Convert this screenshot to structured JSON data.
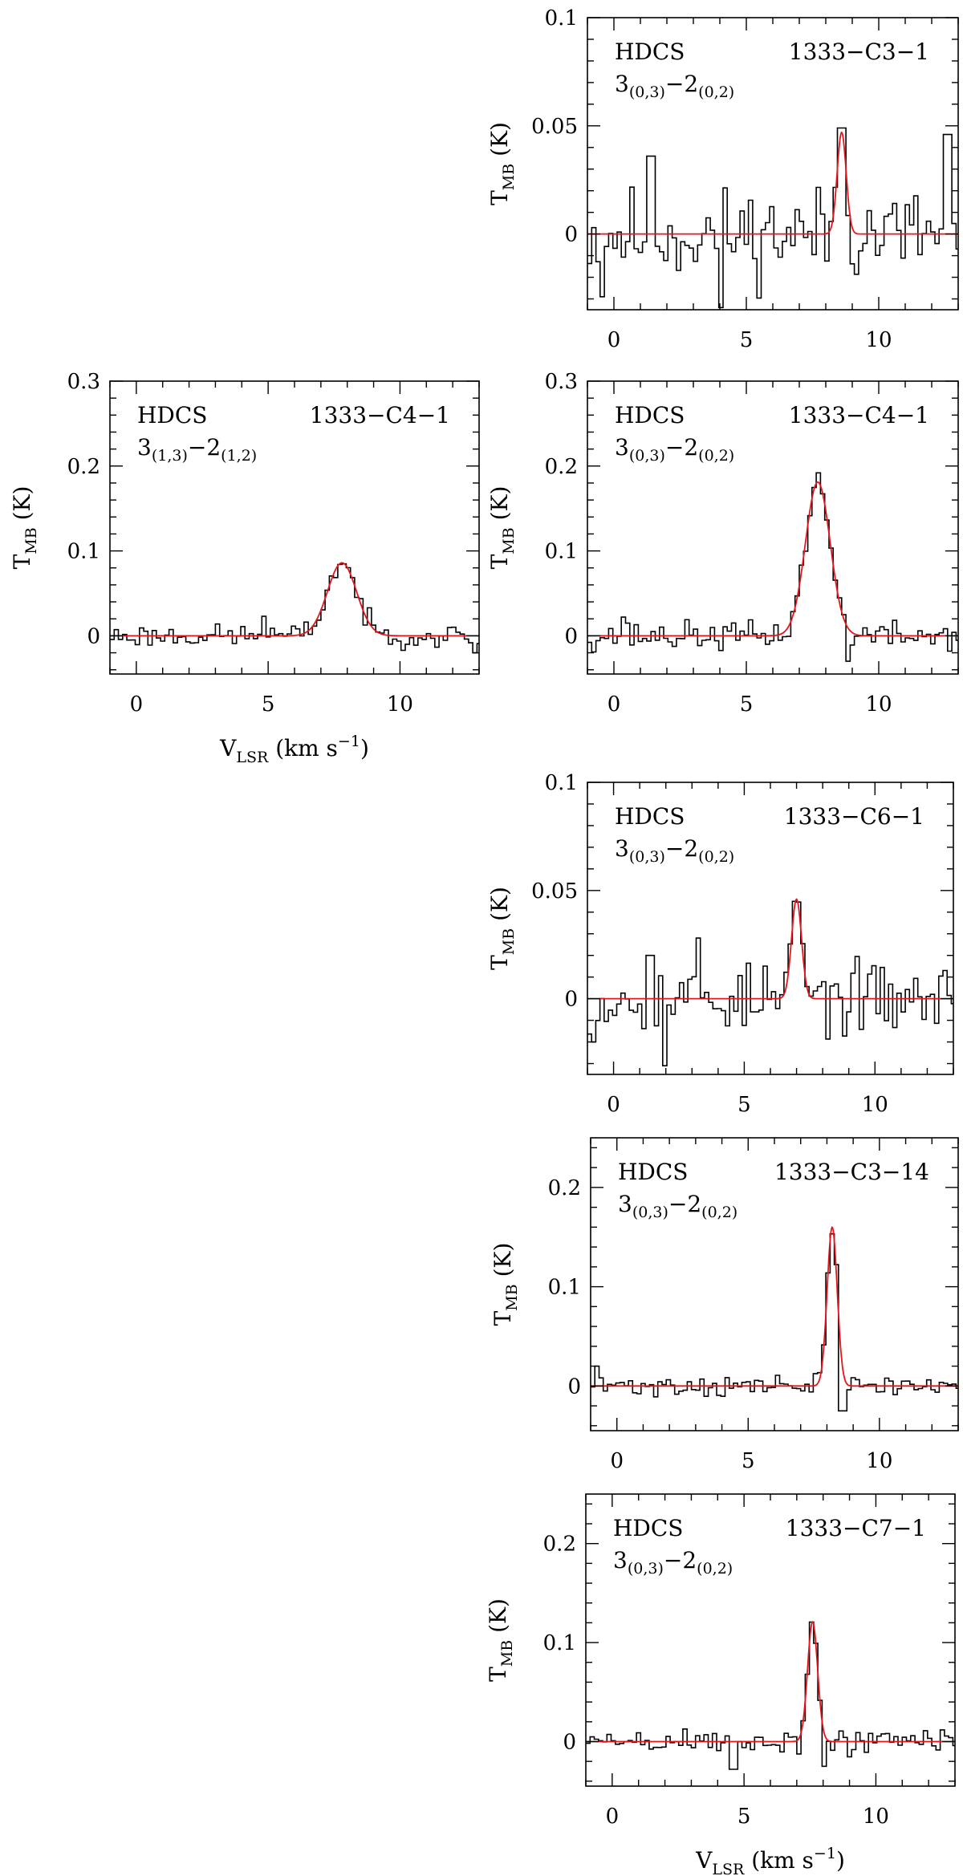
{
  "figure": {
    "x_axis_title": "V",
    "x_axis_title_sub": "LSR",
    "x_axis_title_unit": "(km s",
    "x_axis_title_exp": "−1",
    "x_axis_title_close": ")",
    "y_axis_title": "T",
    "y_axis_title_sub": "MB",
    "y_axis_title_unit": "(K)"
  },
  "colors": {
    "observed": "#000000",
    "fit": "#e8141b"
  },
  "chart_data": [
    {
      "type": "line",
      "id": "p1",
      "molecule": "HDCS",
      "source": "1333−C3−1",
      "transition": {
        "upper": "3",
        "upper_q": "(0,3)",
        "dash": "−",
        "lower": "2",
        "lower_q": "(0,2)"
      },
      "xlim": [
        -1,
        13
      ],
      "ylim": [
        -0.035,
        0.1
      ],
      "xticks": [
        0,
        5,
        10
      ],
      "xtick_labels": [
        "0",
        "5",
        "10"
      ],
      "yticks": [
        0,
        0.05,
        0.1
      ],
      "ytick_labels": [
        "0",
        "0.05",
        "0.1"
      ],
      "fit": {
        "amplitude": 0.047,
        "center": 8.6,
        "fwhm": 0.4
      },
      "noise": 0.018,
      "seed": 11,
      "spikes": [
        [
          8.6,
          0.049
        ],
        [
          12.6,
          0.046
        ],
        [
          1.4,
          0.036
        ],
        [
          -0.4,
          -0.029
        ],
        [
          4.1,
          -0.034
        ]
      ]
    },
    {
      "type": "line",
      "id": "p2",
      "molecule": "HDCS",
      "source": "1333−C4−1",
      "transition": {
        "upper": "3",
        "upper_q": "(1,3)",
        "dash": "−",
        "lower": "2",
        "lower_q": "(1,2)"
      },
      "xlim": [
        -1,
        13
      ],
      "ylim": [
        -0.045,
        0.3
      ],
      "xticks": [
        0,
        5,
        10
      ],
      "xtick_labels": [
        "0",
        "5",
        "10"
      ],
      "yticks": [
        0,
        0.1,
        0.2,
        0.3
      ],
      "ytick_labels": [
        "0",
        "0.1",
        "0.2",
        "0.3"
      ],
      "fit": {
        "amplitude": 0.086,
        "center": 7.8,
        "fwhm": 1.3
      },
      "noise": 0.011,
      "seed": 23,
      "spikes": [
        [
          4.8,
          0.023
        ],
        [
          12.9,
          -0.02
        ]
      ]
    },
    {
      "type": "line",
      "id": "p3",
      "molecule": "HDCS",
      "source": "1333−C4−1",
      "transition": {
        "upper": "3",
        "upper_q": "(0,3)",
        "dash": "−",
        "lower": "2",
        "lower_q": "(0,2)"
      },
      "xlim": [
        -1,
        13
      ],
      "ylim": [
        -0.045,
        0.3
      ],
      "xticks": [
        0,
        5,
        10
      ],
      "xtick_labels": [
        "0",
        "5",
        "10"
      ],
      "yticks": [
        0,
        0.1,
        0.2,
        0.3
      ],
      "ytick_labels": [
        "0",
        "0.1",
        "0.2",
        "0.3"
      ],
      "fit": {
        "amplitude": 0.181,
        "center": 7.7,
        "fwhm": 1.1
      },
      "noise": 0.014,
      "seed": 37,
      "spikes": [
        [
          0.4,
          0.022
        ],
        [
          8.9,
          -0.03
        ]
      ]
    },
    {
      "type": "line",
      "id": "p4",
      "molecule": "HDCS",
      "source": "1333−C6−1",
      "transition": {
        "upper": "3",
        "upper_q": "(0,3)",
        "dash": "−",
        "lower": "2",
        "lower_q": "(0,2)"
      },
      "xlim": [
        -1,
        13
      ],
      "ylim": [
        -0.035,
        0.1
      ],
      "xticks": [
        0,
        5,
        10
      ],
      "xtick_labels": [
        "0",
        "5",
        "10"
      ],
      "yticks": [
        0,
        0.05,
        0.1
      ],
      "ytick_labels": [
        "0",
        "0.05",
        "0.1"
      ],
      "fit": {
        "amplitude": 0.046,
        "center": 7.0,
        "fwhm": 0.45
      },
      "noise": 0.013,
      "seed": 53,
      "spikes": [
        [
          3.3,
          0.028
        ],
        [
          2.0,
          -0.031
        ],
        [
          1.4,
          0.02
        ],
        [
          -0.8,
          -0.02
        ]
      ]
    },
    {
      "type": "line",
      "id": "p5",
      "molecule": "HDCS",
      "source": "1333−C3−14",
      "transition": {
        "upper": "3",
        "upper_q": "(0,3)",
        "dash": "−",
        "lower": "2",
        "lower_q": "(0,2)"
      },
      "xlim": [
        -1,
        13
      ],
      "ylim": [
        -0.045,
        0.25
      ],
      "xticks": [
        0,
        5,
        10
      ],
      "xtick_labels": [
        "0",
        "5",
        "10"
      ],
      "yticks": [
        0,
        0.1,
        0.2
      ],
      "ytick_labels": [
        "0",
        "0.1",
        "0.2"
      ],
      "fit": {
        "amplitude": 0.16,
        "center": 8.2,
        "fwhm": 0.45
      },
      "noise": 0.009,
      "seed": 71,
      "spikes": [
        [
          -0.8,
          0.02
        ],
        [
          8.6,
          -0.025
        ]
      ]
    },
    {
      "type": "line",
      "id": "p6",
      "molecule": "HDCS",
      "source": "1333−C7−1",
      "transition": {
        "upper": "3",
        "upper_q": "(0,3)",
        "dash": "−",
        "lower": "2",
        "lower_q": "(0,2)"
      },
      "xlim": [
        -1,
        13
      ],
      "ylim": [
        -0.045,
        0.25
      ],
      "xticks": [
        0,
        5,
        10
      ],
      "xtick_labels": [
        "0",
        "5",
        "10"
      ],
      "yticks": [
        0,
        0.1,
        0.2
      ],
      "ytick_labels": [
        "0",
        "0.1",
        "0.2"
      ],
      "fit": {
        "amplitude": 0.121,
        "center": 7.6,
        "fwhm": 0.45
      },
      "noise": 0.012,
      "seed": 89,
      "spikes": [
        [
          4.6,
          -0.028
        ],
        [
          8.0,
          -0.025
        ]
      ]
    }
  ]
}
